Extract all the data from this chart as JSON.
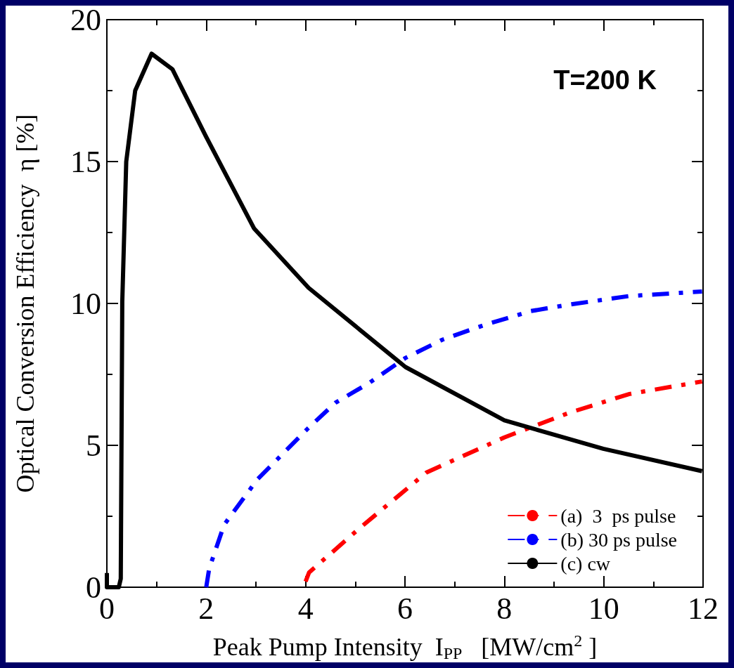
{
  "chart_data": {
    "type": "line",
    "xlabel": "Peak Pump Intensity  I$_{PP}$   [MW/cm$^{2}$ ]",
    "ylabel": "Optical Conversion Efficiency  η [%]",
    "annotations": [
      "T=200 K"
    ],
    "xlim": [
      0,
      12
    ],
    "xticks": [
      0,
      2,
      4,
      6,
      8,
      10,
      12
    ],
    "ylim": [
      0,
      20
    ],
    "yticks": [
      0,
      5,
      10,
      15,
      20
    ],
    "grid": false,
    "legend": "bottom right",
    "marker": "none",
    "series": [
      {
        "name": "(a)  3  ps pulse",
        "color": "#ff0000",
        "line_style": "dashed",
        "x": [
          4.0,
          4.07,
          5.12,
          6.43,
          8.0,
          9.31,
          10.52,
          11.98
        ],
        "values": [
          0.2,
          0.52,
          2.13,
          4.04,
          5.28,
          6.15,
          6.81,
          7.25
        ]
      },
      {
        "name": "(b) 30 ps pulse",
        "color": "#0000ff",
        "line_style": "dashed",
        "x": [
          2.0,
          2.06,
          2.36,
          3.03,
          4.05,
          4.6,
          5.28,
          6.01,
          6.75,
          7.58,
          8.53,
          9.31,
          10.51,
          11.98
        ],
        "values": [
          0,
          0.66,
          2.2,
          3.8,
          5.6,
          6.5,
          7.2,
          8.08,
          8.72,
          9.23,
          9.73,
          9.96,
          10.26,
          10.42
        ]
      },
      {
        "name": "(c) cw",
        "color": "#000000",
        "line_style": "solid",
        "x": [
          0,
          0,
          0.24,
          0.28,
          0.31,
          0.39,
          0.57,
          0.9,
          1.32,
          1.99,
          2.96,
          4.06,
          6.01,
          8.0,
          9.99,
          11.98
        ],
        "values": [
          0.5,
          0,
          0,
          0.3,
          10.05,
          15,
          17.5,
          18.8,
          18.25,
          15.9,
          12.65,
          10.55,
          7.76,
          5.88,
          4.88,
          4.09
        ]
      }
    ]
  }
}
